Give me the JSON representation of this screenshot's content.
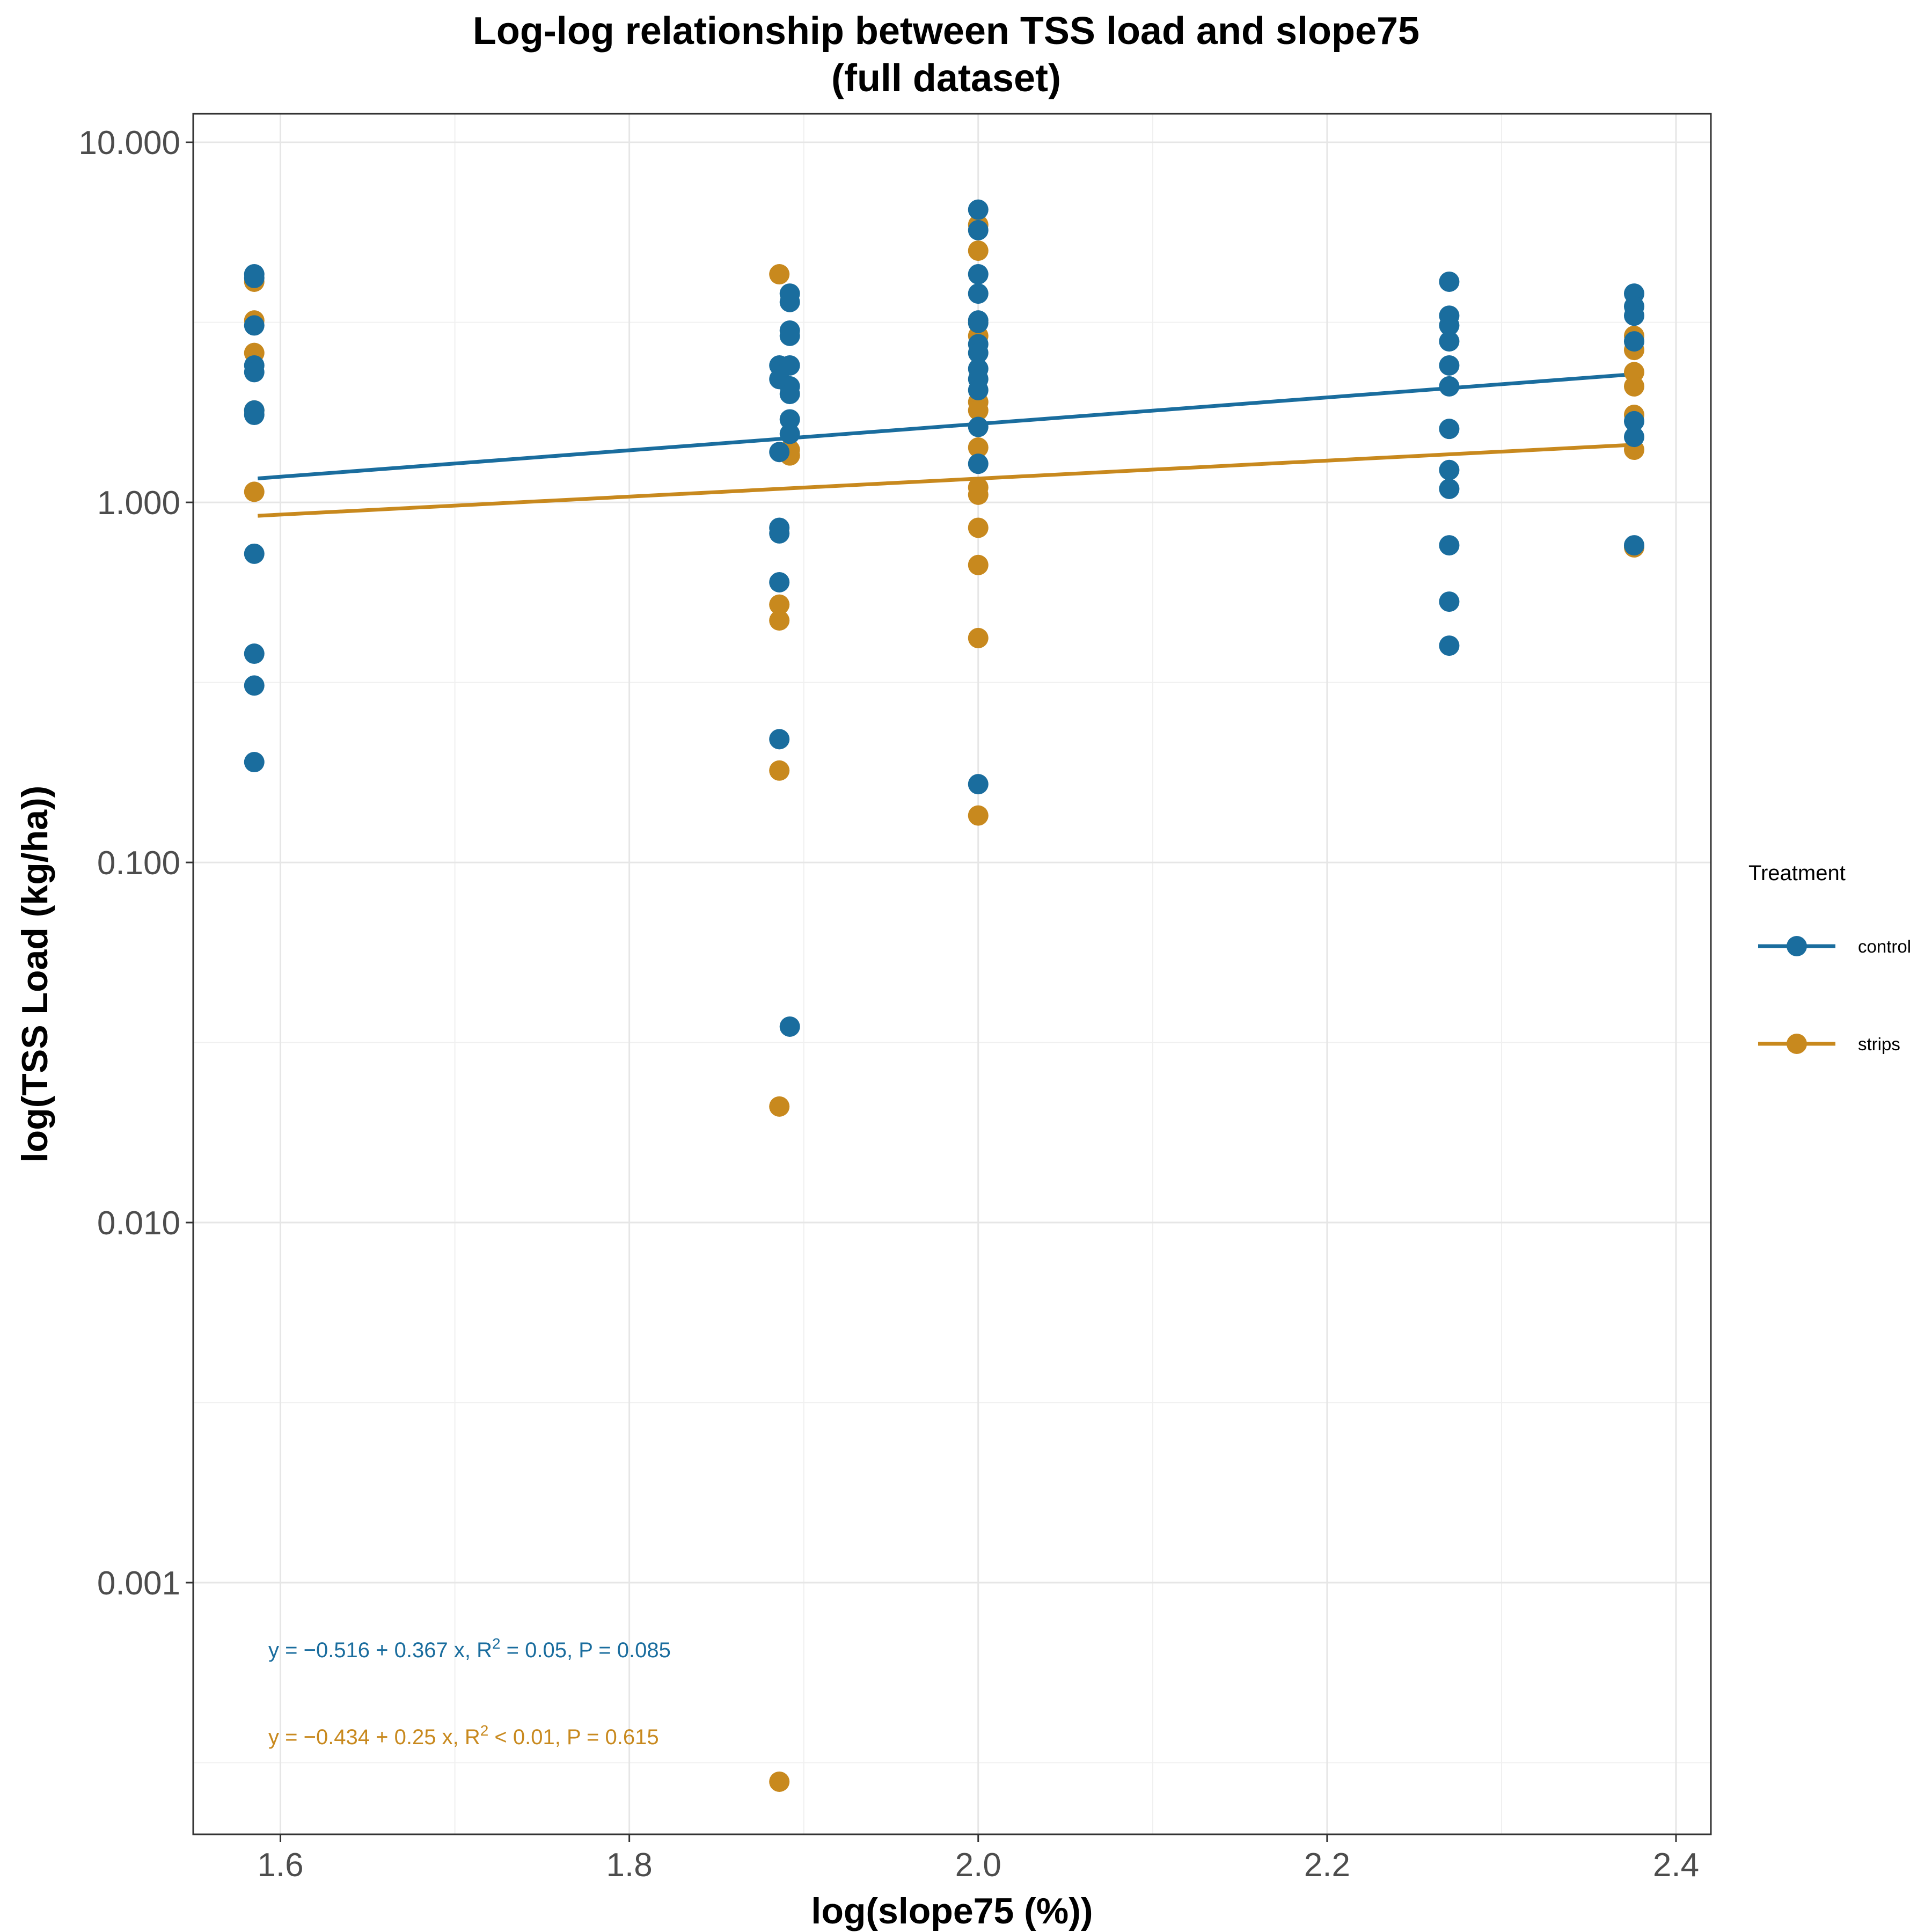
{
  "chart_data": {
    "type": "scatter",
    "title": [
      "Log-log relationship between TSS load and slope75",
      "(full dataset)"
    ],
    "xlabel": "log(slope75 (%))",
    "ylabel": "log(TSS Load (kg/ha))",
    "xlim": [
      1.55,
      2.42
    ],
    "ylim": [
      0.0002,
      12
    ],
    "y_scale": "log",
    "x_ticks": [
      1.6,
      1.8,
      2.0,
      2.2,
      2.4
    ],
    "x_tick_labels": [
      "1.6",
      "1.8",
      "2.0",
      "2.2",
      "2.4"
    ],
    "y_ticks": [
      0.001,
      0.01,
      0.1,
      1,
      10
    ],
    "y_tick_labels": [
      "0.001",
      "0.010",
      "0.100",
      "1.000",
      "10.000"
    ],
    "grid": true,
    "legend": {
      "title": "Treatment",
      "placement": "right"
    },
    "series": [
      {
        "name": "control",
        "color": "#1a6d9e",
        "points": [
          [
            1.585,
            4.3
          ],
          [
            1.585,
            4.2
          ],
          [
            1.585,
            3.1
          ],
          [
            1.585,
            2.4
          ],
          [
            1.585,
            2.3
          ],
          [
            1.585,
            1.8
          ],
          [
            1.585,
            1.75
          ],
          [
            1.585,
            0.72
          ],
          [
            1.585,
            0.38
          ],
          [
            1.585,
            0.31
          ],
          [
            1.585,
            0.19
          ],
          [
            1.886,
            2.4
          ],
          [
            1.886,
            2.2
          ],
          [
            1.886,
            1.38
          ],
          [
            1.886,
            0.85
          ],
          [
            1.886,
            0.82
          ],
          [
            1.886,
            0.6
          ],
          [
            1.886,
            0.22
          ],
          [
            1.892,
            3.8
          ],
          [
            1.892,
            3.6
          ],
          [
            1.892,
            3.0
          ],
          [
            1.892,
            2.9
          ],
          [
            1.892,
            2.4
          ],
          [
            1.892,
            2.1
          ],
          [
            1.892,
            2.0
          ],
          [
            1.892,
            1.7
          ],
          [
            1.892,
            1.55
          ],
          [
            1.892,
            0.035
          ],
          [
            2.0,
            6.5
          ],
          [
            2.0,
            5.7
          ],
          [
            2.0,
            4.3
          ],
          [
            2.0,
            3.8
          ],
          [
            2.0,
            3.2
          ],
          [
            2.0,
            3.15
          ],
          [
            2.0,
            2.75
          ],
          [
            2.0,
            2.6
          ],
          [
            2.0,
            2.35
          ],
          [
            2.0,
            2.2
          ],
          [
            2.0,
            2.05
          ],
          [
            2.0,
            1.62
          ],
          [
            2.0,
            1.28
          ],
          [
            2.0,
            0.165
          ],
          [
            2.27,
            4.1
          ],
          [
            2.27,
            3.3
          ],
          [
            2.27,
            3.1
          ],
          [
            2.27,
            2.8
          ],
          [
            2.27,
            2.4
          ],
          [
            2.27,
            2.1
          ],
          [
            2.27,
            1.6
          ],
          [
            2.27,
            1.23
          ],
          [
            2.27,
            1.09
          ],
          [
            2.27,
            0.76
          ],
          [
            2.27,
            0.53
          ],
          [
            2.27,
            0.4
          ],
          [
            2.376,
            3.8
          ],
          [
            2.376,
            3.5
          ],
          [
            2.376,
            3.3
          ],
          [
            2.376,
            2.8
          ],
          [
            2.376,
            1.68
          ],
          [
            2.376,
            1.52
          ],
          [
            2.376,
            0.76
          ]
        ],
        "fit": {
          "intercept": -0.516,
          "slope": 0.367
        },
        "equation": {
          "prefix": "y = −0.516 + 0.367 x, R",
          "sup": "2",
          "suffix": " = 0.05, P = 0.085"
        }
      },
      {
        "name": "strips",
        "color": "#c8891e",
        "points": [
          [
            1.585,
            4.1
          ],
          [
            1.585,
            3.2
          ],
          [
            1.585,
            2.6
          ],
          [
            1.585,
            1.8
          ],
          [
            1.585,
            1.07
          ],
          [
            1.886,
            4.3
          ],
          [
            1.886,
            0.52
          ],
          [
            1.886,
            0.47
          ],
          [
            1.886,
            0.18
          ],
          [
            1.886,
            0.021
          ],
          [
            1.886,
            0.00028
          ],
          [
            1.892,
            1.4
          ],
          [
            1.892,
            1.35
          ],
          [
            2.0,
            5.9
          ],
          [
            2.0,
            5.0
          ],
          [
            2.0,
            2.9
          ],
          [
            2.0,
            1.9
          ],
          [
            2.0,
            1.8
          ],
          [
            2.0,
            1.42
          ],
          [
            2.0,
            1.1
          ],
          [
            2.0,
            1.05
          ],
          [
            2.0,
            0.85
          ],
          [
            2.0,
            0.67
          ],
          [
            2.0,
            0.42
          ],
          [
            2.0,
            0.135
          ],
          [
            2.376,
            2.9
          ],
          [
            2.376,
            2.65
          ],
          [
            2.376,
            2.3
          ],
          [
            2.376,
            2.1
          ],
          [
            2.376,
            1.75
          ],
          [
            2.376,
            1.4
          ],
          [
            2.376,
            0.75
          ]
        ],
        "fit": {
          "intercept": -0.434,
          "slope": 0.25
        },
        "equation": {
          "prefix": "y = −0.434 + 0.25 x, R",
          "sup": "2",
          "suffix": " < 0.01, P = 0.615"
        }
      }
    ],
    "fit_x_range": [
      1.587,
      2.376
    ]
  }
}
